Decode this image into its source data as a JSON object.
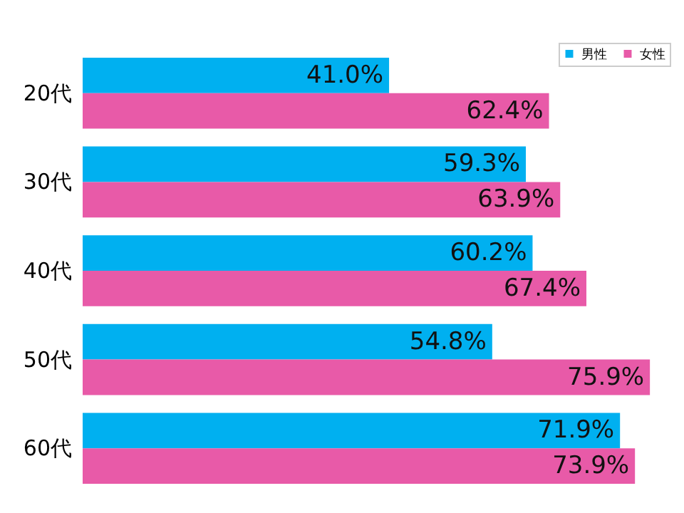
{
  "chart_data": {
    "type": "bar",
    "orientation": "horizontal",
    "categories": [
      "20代",
      "30代",
      "40代",
      "50代",
      "60代"
    ],
    "series": [
      {
        "name": "男性",
        "color": "#00b0f0",
        "values": [
          41.0,
          59.3,
          60.2,
          54.8,
          71.9
        ],
        "value_labels": [
          "41.0%",
          "59.3%",
          "60.2%",
          "54.8%",
          "71.9%"
        ]
      },
      {
        "name": "女性",
        "color": "#e85aa8",
        "values": [
          62.4,
          63.9,
          67.4,
          75.9,
          73.9
        ],
        "value_labels": [
          "62.4%",
          "63.9%",
          "67.4%",
          "75.9%",
          "73.9%"
        ]
      }
    ],
    "legend": "top right",
    "grid": false
  }
}
